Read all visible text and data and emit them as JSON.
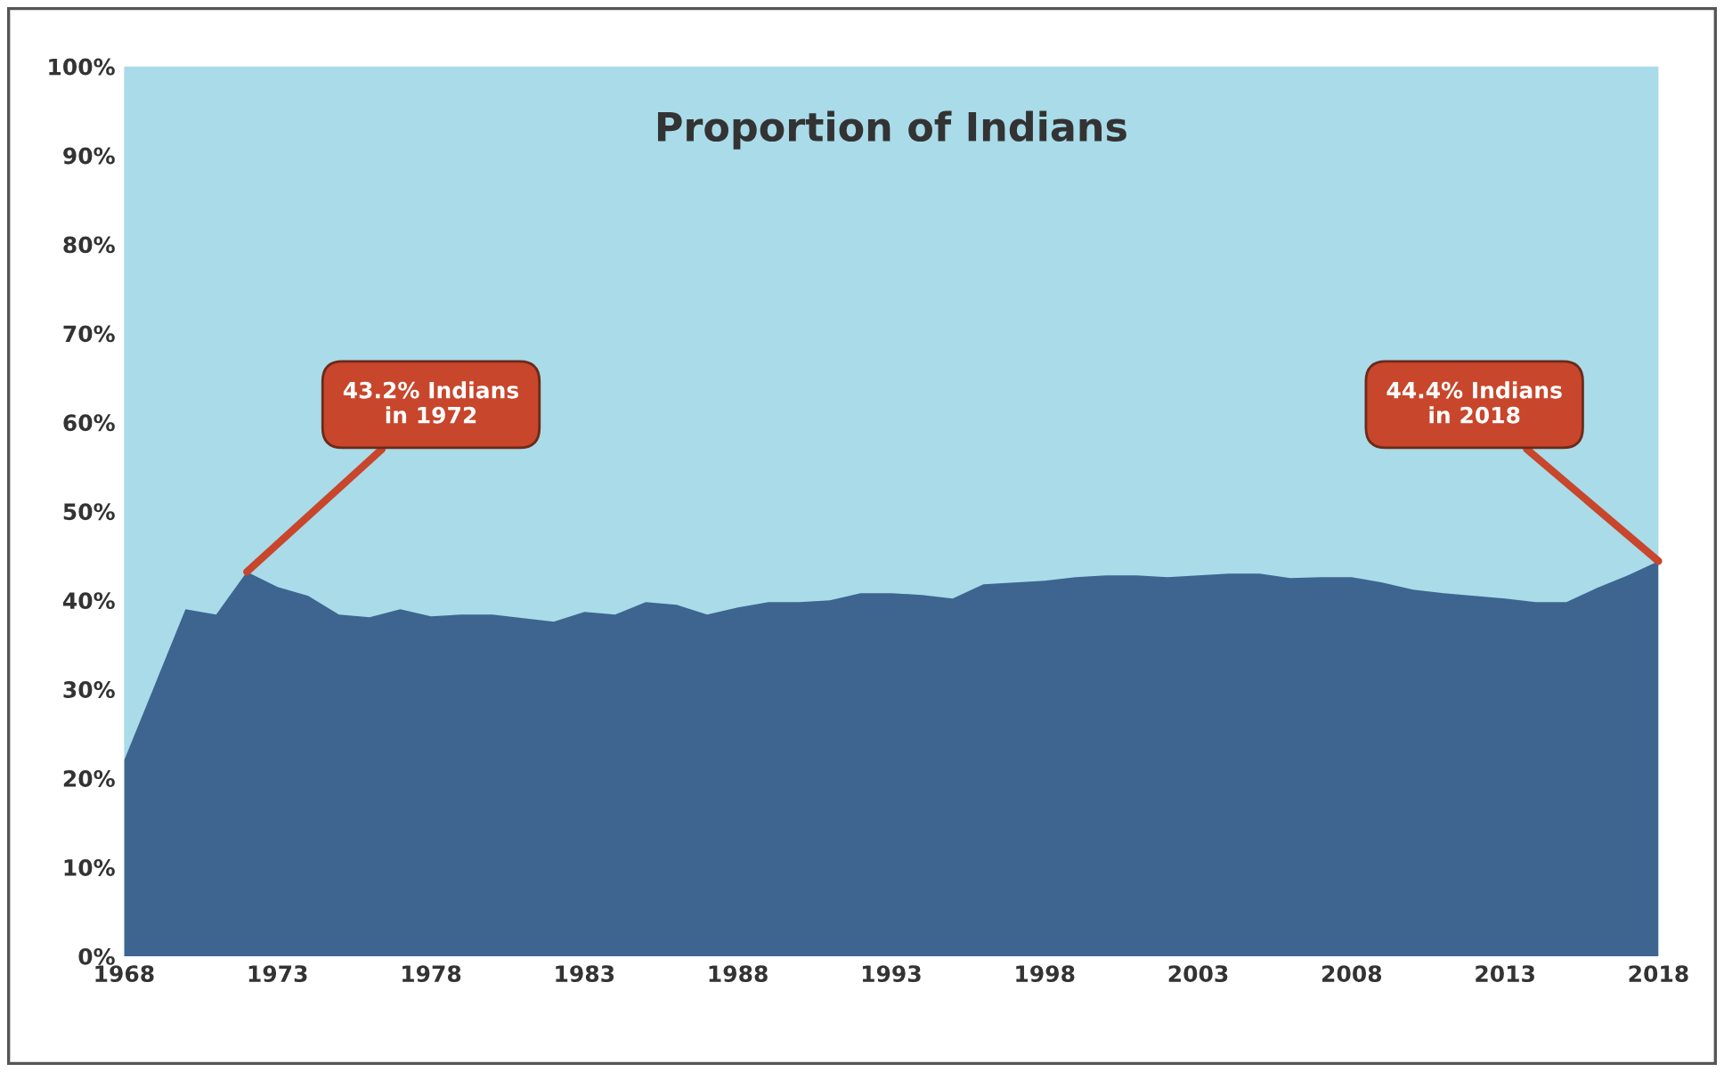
{
  "chart_data": {
    "type": "area",
    "title": "Proportion of Indians",
    "x": [
      1968,
      1969,
      1970,
      1971,
      1972,
      1973,
      1974,
      1975,
      1976,
      1977,
      1978,
      1979,
      1980,
      1981,
      1982,
      1983,
      1984,
      1985,
      1986,
      1987,
      1988,
      1989,
      1990,
      1991,
      1992,
      1993,
      1994,
      1995,
      1996,
      1997,
      1998,
      1999,
      2000,
      2001,
      2002,
      2003,
      2004,
      2005,
      2006,
      2007,
      2008,
      2009,
      2010,
      2011,
      2012,
      2013,
      2014,
      2015,
      2016,
      2017,
      2018
    ],
    "series": [
      {
        "color": "#3d6590",
        "values": [
          22,
          30.5,
          39,
          38.4,
          43.2,
          41.5,
          40.5,
          38.4,
          38.1,
          39,
          38.2,
          38.4,
          38.4,
          38,
          37.6,
          38.7,
          38.4,
          39.8,
          39.5,
          38.4,
          39.2,
          39.8,
          39.8,
          40,
          40.8,
          40.8,
          40.6,
          40.2,
          41.8,
          42,
          42.2,
          42.6,
          42.8,
          42.8,
          42.6,
          42.8,
          43,
          43,
          42.5,
          42.6,
          42.6,
          42,
          41.2,
          40.8,
          40.5,
          40.2,
          39.8,
          39.8,
          41.4,
          42.8,
          44.4
        ]
      }
    ],
    "xlim": [
      1968,
      2018
    ],
    "xticks": [
      1968,
      1973,
      1978,
      1983,
      1988,
      1993,
      1998,
      2003,
      2008,
      2013,
      2018
    ],
    "ylim": [
      0,
      100
    ],
    "yticks": [
      {
        "value": 0,
        "label": "0%"
      },
      {
        "value": 10,
        "label": "10%"
      },
      {
        "value": 20,
        "label": "20%"
      },
      {
        "value": 30,
        "label": "30%"
      },
      {
        "value": 40,
        "label": "40%"
      },
      {
        "value": 50,
        "label": "50%"
      },
      {
        "value": 60,
        "label": "60%"
      },
      {
        "value": 70,
        "label": "70%"
      },
      {
        "value": 80,
        "label": "80%"
      },
      {
        "value": 90,
        "label": "90%"
      },
      {
        "value": 100,
        "label": "100%"
      }
    ],
    "grid": false,
    "annotations": [
      {
        "text": "43.2% Indians\nin 1972",
        "x": 1972,
        "y": 43.2
      },
      {
        "text": "44.4% Indians\nin 2018",
        "x": 2018,
        "y": 44.4
      }
    ]
  }
}
